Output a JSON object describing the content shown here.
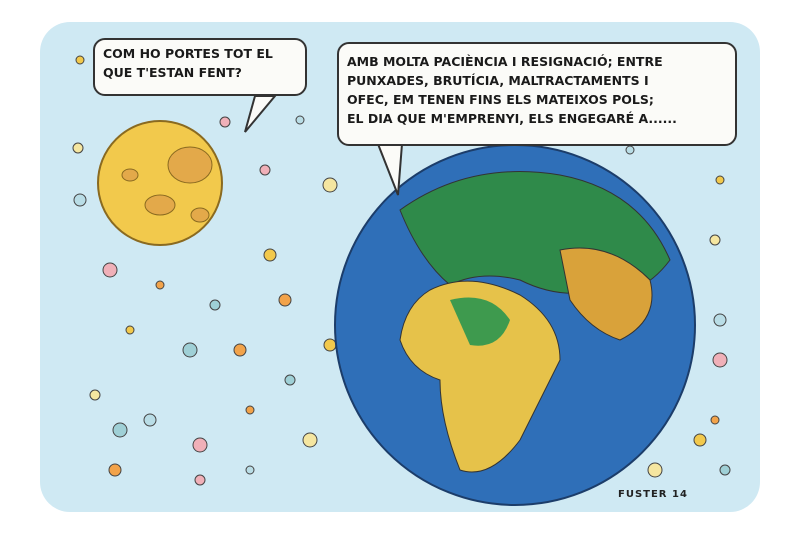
{
  "moon_bubble": {
    "lines": [
      "COM HO PORTES TOT EL",
      "QUE T'ESTAN FENT?"
    ]
  },
  "earth_bubble": {
    "lines": [
      "AMB MOLTA PACIÈNCIA I RESIGNACIÓ; ENTRE",
      "PUNXADES, BRUTÍCIA, MALTRACTAMENTS I",
      "OFEC,  EM TENEN FINS ELS MATEIXOS POLS;",
      "EL DIA QUE M'EMPRENYI, ELS ENGEGARÉ A......"
    ]
  },
  "signature": "FUSTER 14",
  "colors": {
    "sky": "#cfe9f3",
    "ocean": "#2f6fb8",
    "land_green": "#2f8a4a",
    "land_yellow": "#e6c24a",
    "moon": "#f2c94c"
  }
}
